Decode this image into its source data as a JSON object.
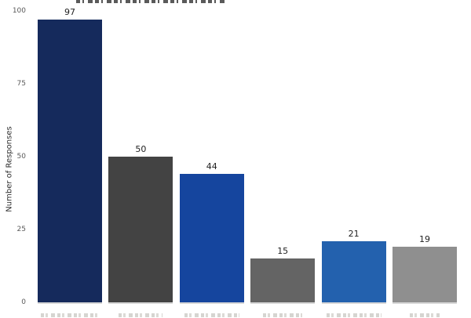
{
  "chart_data": {
    "type": "bar",
    "title": "",
    "title_clipped": true,
    "categories": [
      "",
      "",
      "",
      "",
      "",
      ""
    ],
    "x_labels_clipped": true,
    "values": [
      97,
      50,
      44,
      15,
      21,
      19
    ],
    "value_labels": [
      "97",
      "50",
      "44",
      "15",
      "21",
      "19"
    ],
    "bar_colors": [
      "#152a5c",
      "#434343",
      "#15459e",
      "#646464",
      "#2361ae",
      "#8f8f8f"
    ],
    "ylabel": "Number of Responses",
    "yticks": [
      "0",
      "25",
      "50",
      "75",
      "100"
    ],
    "ytick_values": [
      0,
      25,
      50,
      75,
      100
    ],
    "ylim": [
      0,
      100
    ],
    "grid": false,
    "legend": null,
    "background_color": "#ffffff",
    "tick_label_color": "#5a5a5a",
    "value_label_color": "#1f1f1f"
  }
}
